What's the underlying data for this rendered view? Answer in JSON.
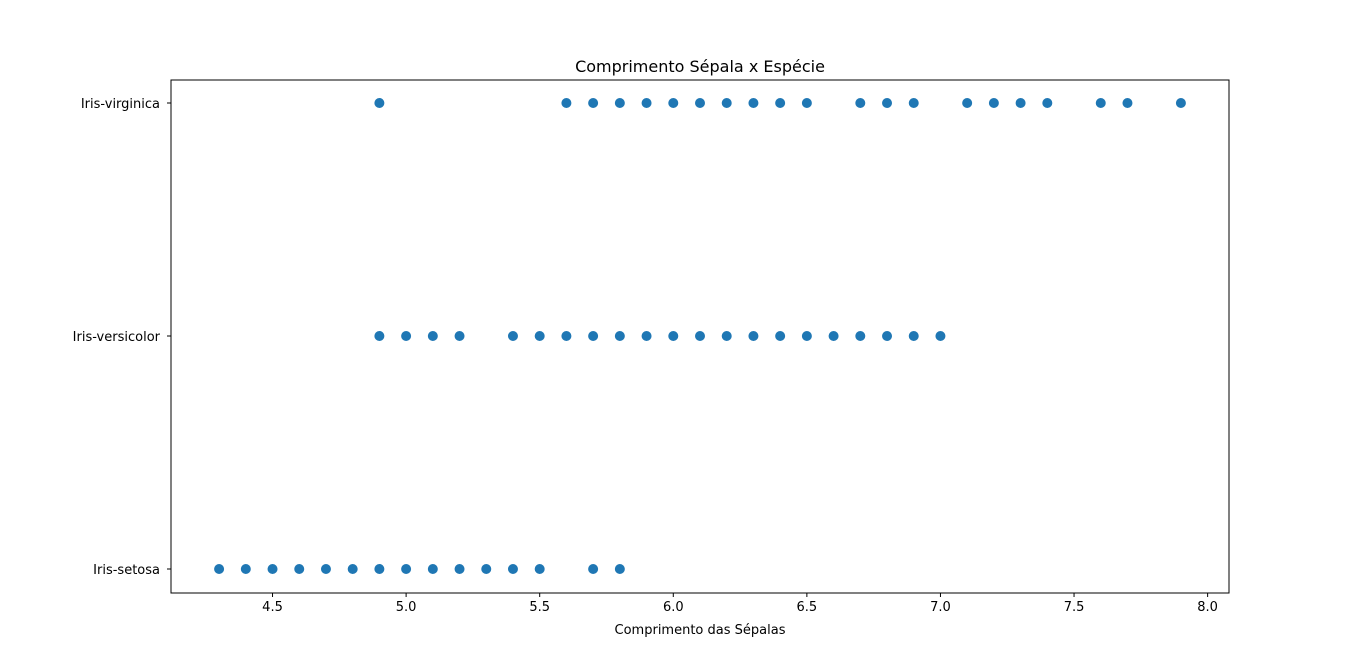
{
  "chart_data": {
    "type": "scatter",
    "title": "Comprimento Sépala x Espécie",
    "xlabel": "Comprimento das Sépalas",
    "ylabel": "",
    "xlim": [
      4.12,
      8.08
    ],
    "x_ticks": [
      4.5,
      5.0,
      5.5,
      6.0,
      6.5,
      7.0,
      7.5,
      8.0
    ],
    "x_tick_labels": [
      "4.5",
      "5.0",
      "5.5",
      "6.0",
      "6.5",
      "7.0",
      "7.5",
      "8.0"
    ],
    "categories": [
      "Iris-setosa",
      "Iris-versicolor",
      "Iris-virginica"
    ],
    "grid": false,
    "color": "#1f77b4",
    "series": [
      {
        "category": "Iris-setosa",
        "x": [
          4.3,
          4.4,
          4.5,
          4.6,
          4.7,
          4.8,
          4.9,
          5.0,
          5.1,
          5.2,
          5.3,
          5.4,
          5.5,
          5.7,
          5.8
        ]
      },
      {
        "category": "Iris-versicolor",
        "x": [
          4.9,
          5.0,
          5.1,
          5.2,
          5.4,
          5.5,
          5.6,
          5.7,
          5.8,
          5.9,
          6.0,
          6.1,
          6.2,
          6.3,
          6.4,
          6.5,
          6.6,
          6.7,
          6.8,
          6.9,
          7.0
        ]
      },
      {
        "category": "Iris-virginica",
        "x": [
          4.9,
          5.6,
          5.7,
          5.8,
          5.9,
          6.0,
          6.1,
          6.2,
          6.3,
          6.4,
          6.5,
          6.7,
          6.8,
          6.9,
          7.1,
          7.2,
          7.3,
          7.4,
          7.6,
          7.7,
          7.9
        ]
      }
    ]
  }
}
